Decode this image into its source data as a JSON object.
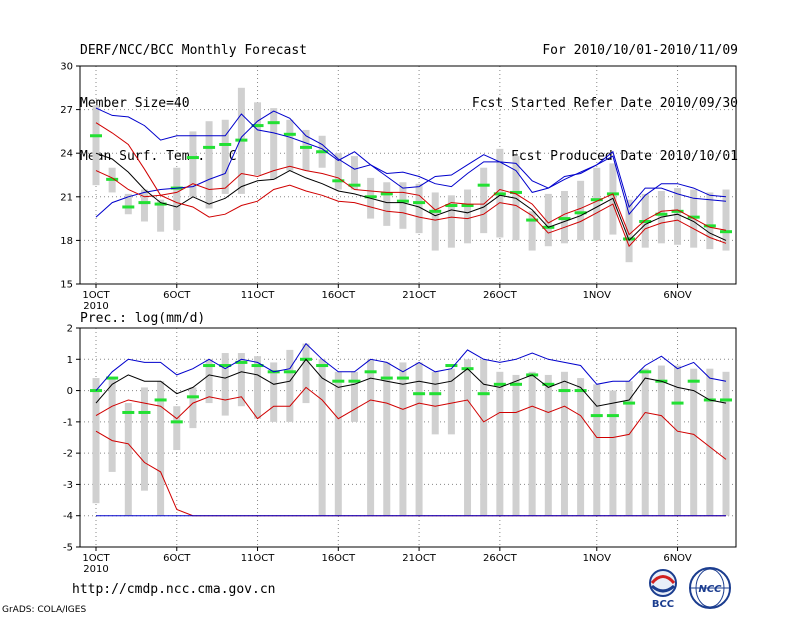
{
  "header": {
    "title": "DERF/NCC/BCC Monthly Forecast",
    "member_size": "Member Size=40",
    "variable_1": "Mean Surf. Temp.: °C",
    "period": "For 2010/10/01-2010/11/09",
    "fcst_started": "Fcst Started Refer Date 2010/09/30",
    "fcst_produced": "Fcst Produced Date 2010/10/01"
  },
  "footer": {
    "url": "http://cmdp.ncc.cma.gov.cn",
    "credit": "GrADS: COLA/IGES",
    "logo_bcc": "BCC",
    "logo_ncc": "NCC"
  },
  "colors": {
    "mean": "#000000",
    "spread": "#d00000",
    "extreme": "#0000cc",
    "box": "#d0d0d0",
    "median": "#22e033",
    "grid": "#888888"
  },
  "chart_data": [
    {
      "type": "box-line",
      "title": "Mean Surf. Temp.: °C",
      "ylim": [
        15,
        30
      ],
      "yticks": [
        15,
        18,
        21,
        24,
        27,
        30
      ],
      "x_days": 40,
      "xticks": [
        {
          "day": 1,
          "label": "1OCT",
          "sub": "2010"
        },
        {
          "day": 6,
          "label": "6OCT"
        },
        {
          "day": 11,
          "label": "11OCT"
        },
        {
          "day": 16,
          "label": "16OCT"
        },
        {
          "day": 21,
          "label": "21OCT"
        },
        {
          "day": 26,
          "label": "26OCT"
        },
        {
          "day": 32,
          "label": "1NOV"
        },
        {
          "day": 37,
          "label": "6NOV"
        }
      ],
      "box_low": [
        21.8,
        21.3,
        19.8,
        19.3,
        18.6,
        18.7,
        21.0,
        20.2,
        21.2,
        21.2,
        22.5,
        22.2,
        22.8,
        22.8,
        23.0,
        21.5,
        21.5,
        19.5,
        19.0,
        18.8,
        18.5,
        17.3,
        17.5,
        17.8,
        18.5,
        18.2,
        18.0,
        17.3,
        17.6,
        17.8,
        18.0,
        18.0,
        18.4,
        16.5,
        17.5,
        17.8,
        17.7,
        17.5,
        17.4,
        17.3
      ],
      "box_high": [
        27.3,
        23.0,
        21.2,
        21.5,
        20.8,
        23.0,
        25.5,
        26.2,
        26.3,
        28.5,
        27.5,
        27.1,
        26.3,
        25.6,
        25.2,
        24.0,
        23.8,
        22.3,
        22.0,
        22.0,
        21.9,
        21.3,
        21.1,
        21.5,
        23.0,
        24.3,
        23.8,
        20.0,
        21.2,
        21.4,
        22.1,
        23.0,
        23.3,
        20.8,
        21.2,
        21.4,
        21.6,
        21.5,
        21.3,
        21.5
      ],
      "median": [
        25.2,
        22.2,
        20.3,
        20.6,
        20.5,
        21.6,
        23.7,
        24.4,
        24.6,
        24.9,
        25.9,
        26.1,
        25.3,
        24.4,
        24.1,
        22.1,
        21.8,
        21.0,
        21.2,
        20.7,
        20.6,
        20.0,
        20.4,
        20.4,
        21.8,
        21.2,
        21.3,
        19.4,
        18.9,
        19.5,
        19.9,
        20.8,
        21.2,
        18.1,
        19.3,
        19.8,
        20.0,
        19.6,
        19.0,
        18.6
      ],
      "series": [
        {
          "name": "max",
          "color_key": "extreme",
          "values": [
            19.6,
            20.6,
            21.0,
            21.3,
            21.5,
            21.6,
            21.7,
            22.2,
            22.6,
            25.1,
            26.2,
            26.9,
            26.4,
            25.2,
            24.6,
            23.6,
            22.9,
            23.2,
            22.4,
            21.6,
            21.7,
            22.4,
            22.5,
            23.2,
            23.9,
            23.4,
            23.3,
            22.1,
            21.6,
            22.4,
            22.6,
            23.2,
            24.1,
            20.3,
            21.6,
            21.6,
            21.2,
            20.9,
            20.8,
            20.7
          ]
        },
        {
          "name": "mean+sd",
          "color_key": "spread",
          "values": [
            22.8,
            22.3,
            21.5,
            21.0,
            21.1,
            21.3,
            21.9,
            21.5,
            21.6,
            22.6,
            22.4,
            22.8,
            23.1,
            22.8,
            22.6,
            22.3,
            21.5,
            21.4,
            21.3,
            21.3,
            21.1,
            20.1,
            20.6,
            20.5,
            20.5,
            21.5,
            21.2,
            20.5,
            19.2,
            19.8,
            20.2,
            20.7,
            21.2,
            18.4,
            19.4,
            20.0,
            20.1,
            19.5,
            18.9,
            18.7
          ]
        },
        {
          "name": "mean",
          "color_key": "mean",
          "values": [
            24.0,
            23.6,
            22.7,
            21.5,
            20.6,
            20.3,
            21.0,
            20.5,
            20.9,
            21.7,
            22.1,
            22.2,
            22.8,
            22.3,
            21.9,
            21.4,
            21.2,
            20.9,
            20.6,
            20.6,
            20.3,
            19.7,
            20.1,
            19.9,
            20.3,
            21.1,
            20.9,
            20.1,
            18.9,
            19.3,
            19.7,
            20.3,
            20.9,
            18.0,
            19.1,
            19.6,
            19.8,
            19.3,
            18.5,
            18.0
          ]
        },
        {
          "name": "mean-sd",
          "color_key": "spread",
          "values": [
            26.1,
            25.4,
            24.6,
            22.9,
            21.1,
            20.6,
            20.3,
            19.6,
            19.8,
            20.4,
            20.7,
            21.5,
            21.8,
            21.4,
            21.1,
            20.7,
            20.6,
            20.3,
            20.0,
            19.9,
            19.6,
            19.4,
            19.6,
            19.5,
            19.8,
            20.6,
            20.4,
            19.7,
            18.5,
            18.9,
            19.3,
            19.9,
            20.5,
            17.6,
            18.8,
            19.2,
            19.4,
            18.8,
            18.2,
            17.8
          ]
        },
        {
          "name": "min",
          "color_key": "extreme",
          "values": [
            27.1,
            26.6,
            26.5,
            25.9,
            24.9,
            25.2,
            25.2,
            25.2,
            25.2,
            26.7,
            25.6,
            25.4,
            25.1,
            24.7,
            24.3,
            23.5,
            24.1,
            23.2,
            22.6,
            22.7,
            22.4,
            21.9,
            21.7,
            22.6,
            23.4,
            23.4,
            22.8,
            21.3,
            21.6,
            22.2,
            22.7,
            23.2,
            23.8,
            19.8,
            21.1,
            21.9,
            21.9,
            21.6,
            21.1,
            21.0
          ]
        }
      ]
    },
    {
      "type": "box-line",
      "title": "Prec.: log(mm/d)",
      "ylim": [
        -5,
        2
      ],
      "yticks": [
        -5,
        -4,
        -3,
        -2,
        -1,
        0,
        1,
        2
      ],
      "x_days": 40,
      "xticks": [
        {
          "day": 1,
          "label": "1OCT",
          "sub": "2010"
        },
        {
          "day": 6,
          "label": "6OCT"
        },
        {
          "day": 11,
          "label": "11OCT"
        },
        {
          "day": 16,
          "label": "16OCT"
        },
        {
          "day": 21,
          "label": "21OCT"
        },
        {
          "day": 26,
          "label": "26OCT"
        },
        {
          "day": 32,
          "label": "1NOV"
        },
        {
          "day": 37,
          "label": "6NOV"
        }
      ],
      "box_low": [
        -3.6,
        -2.6,
        -4.0,
        -3.2,
        -4.0,
        -1.9,
        -1.2,
        -0.4,
        -0.8,
        -0.5,
        -0.9,
        -1.0,
        -1.0,
        -0.4,
        -4.0,
        -4.0,
        -1.0,
        -4.0,
        -4.0,
        -4.0,
        -4.0,
        -1.4,
        -1.4,
        -4.0,
        -4.0,
        -4.0,
        -4.0,
        -4.0,
        -4.0,
        -4.0,
        -4.0,
        -4.0,
        -4.0,
        -4.0,
        -4.0,
        -4.0,
        -4.0,
        -4.0,
        -4.0,
        -4.0
      ],
      "box_high": [
        0.4,
        0.4,
        -0.4,
        0.1,
        0.3,
        -0.5,
        0.1,
        1.0,
        1.2,
        1.2,
        1.1,
        0.9,
        1.3,
        1.5,
        1.0,
        0.6,
        0.6,
        1.0,
        0.9,
        0.9,
        0.9,
        0.6,
        0.7,
        1.0,
        1.0,
        0.6,
        0.5,
        0.6,
        0.5,
        0.6,
        0.4,
        0.2,
        0.0,
        0.3,
        0.7,
        0.8,
        0.8,
        0.7,
        0.7,
        0.6
      ],
      "median": [
        0.0,
        0.4,
        -0.7,
        -0.7,
        -0.3,
        -1.0,
        -0.2,
        0.8,
        0.8,
        0.9,
        0.8,
        0.6,
        0.6,
        1.0,
        0.8,
        0.3,
        0.3,
        0.6,
        0.4,
        0.4,
        -0.1,
        -0.1,
        0.8,
        0.7,
        -0.1,
        0.2,
        0.2,
        0.5,
        0.2,
        0.0,
        0.0,
        -0.8,
        -0.8,
        -0.4,
        0.6,
        0.3,
        -0.4,
        0.3,
        -0.3,
        -0.3
      ],
      "series": [
        {
          "name": "max",
          "color_key": "extreme",
          "values": [
            0.0,
            0.6,
            1.0,
            0.9,
            0.9,
            0.5,
            0.7,
            1.0,
            0.7,
            1.0,
            0.9,
            0.6,
            0.7,
            1.5,
            1.0,
            0.6,
            0.6,
            1.0,
            0.9,
            0.6,
            0.9,
            0.6,
            0.7,
            1.3,
            1.0,
            0.9,
            1.0,
            1.2,
            1.0,
            0.9,
            0.8,
            0.2,
            0.3,
            0.3,
            0.8,
            1.1,
            0.7,
            0.9,
            0.4,
            0.3
          ]
        },
        {
          "name": "mean",
          "color_key": "mean",
          "values": [
            -0.4,
            0.2,
            0.5,
            0.3,
            0.3,
            -0.1,
            0.1,
            0.5,
            0.4,
            0.6,
            0.5,
            0.2,
            0.3,
            1.0,
            0.4,
            0.1,
            0.2,
            0.4,
            0.3,
            0.2,
            0.3,
            0.2,
            0.3,
            0.7,
            0.2,
            0.1,
            0.3,
            0.5,
            0.1,
            0.3,
            0.1,
            -0.5,
            -0.4,
            -0.3,
            0.4,
            0.3,
            0.1,
            0.0,
            -0.3,
            -0.4
          ]
        },
        {
          "name": "mean-sd",
          "color_key": "spread",
          "values": [
            -0.8,
            -0.5,
            -0.3,
            -0.4,
            -0.5,
            -0.9,
            -0.4,
            -0.2,
            -0.3,
            -0.2,
            -0.9,
            -0.5,
            -0.5,
            0.1,
            -0.3,
            -0.9,
            -0.6,
            -0.3,
            -0.4,
            -0.6,
            -0.4,
            -0.5,
            -0.4,
            -0.3,
            -1.0,
            -0.7,
            -0.7,
            -0.5,
            -0.7,
            -0.5,
            -0.8,
            -1.5,
            -1.5,
            -1.4,
            -0.7,
            -0.8,
            -1.3,
            -1.4,
            -1.8,
            -2.2
          ]
        },
        {
          "name": "min",
          "color_key": "spread",
          "values": [
            -1.3,
            -1.6,
            -1.7,
            -2.3,
            -2.6,
            -3.8,
            -4.0,
            -4.0,
            -4.0,
            -4.0,
            -4.0,
            -4.0,
            -4.0,
            -4.0,
            -4.0,
            -4.0,
            -4.0,
            -4.0,
            -4.0,
            -4.0,
            -4.0,
            -4.0,
            -4.0,
            -4.0,
            -4.0,
            -4.0,
            -4.0,
            -4.0,
            -4.0,
            -4.0,
            -4.0,
            -4.0,
            -4.0,
            -4.0,
            -4.0,
            -4.0,
            -4.0,
            -4.0,
            -4.0,
            -4.0
          ]
        },
        {
          "name": "floor",
          "color_key": "extreme",
          "values": [
            -4.0,
            -4.0,
            -4.0,
            -4.0,
            -4.0,
            -4.0,
            -4.0,
            -4.0,
            -4.0,
            -4.0,
            -4.0,
            -4.0,
            -4.0,
            -4.0,
            -4.0,
            -4.0,
            -4.0,
            -4.0,
            -4.0,
            -4.0,
            -4.0,
            -4.0,
            -4.0,
            -4.0,
            -4.0,
            -4.0,
            -4.0,
            -4.0,
            -4.0,
            -4.0,
            -4.0,
            -4.0,
            -4.0,
            -4.0,
            -4.0,
            -4.0,
            -4.0,
            -4.0,
            -4.0,
            -4.0
          ]
        }
      ]
    }
  ]
}
